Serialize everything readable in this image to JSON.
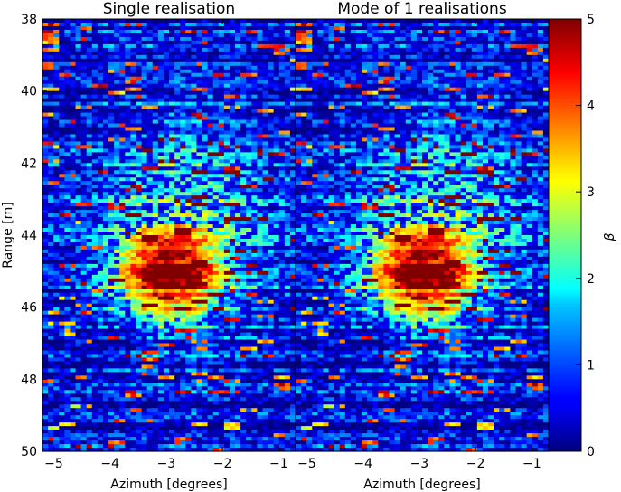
{
  "chart_data": [
    {
      "type": "heatmap",
      "title": "Single realisation",
      "xlabel": "Azimuth [degrees]",
      "ylabel": "Range [m]",
      "xlim": [
        -5.2,
        -0.7
      ],
      "ylim": [
        50,
        38
      ],
      "x_ticks": [
        -5,
        -4,
        -3,
        -2,
        -1
      ],
      "y_ticks": [
        38,
        40,
        42,
        44,
        46,
        48,
        50
      ],
      "x_tick_labels": [
        "−5",
        "−4",
        "−3",
        "−2",
        "−1"
      ],
      "y_tick_labels": [
        "38",
        "40",
        "42",
        "44",
        "46",
        "48",
        "50"
      ],
      "hotspot": {
        "azimuth": -2.9,
        "range": 45.0,
        "peak_beta": 5
      }
    },
    {
      "type": "heatmap",
      "title": "Mode of 1 realisations",
      "xlabel": "Azimuth [degrees]",
      "ylabel": "",
      "xlim": [
        -5.2,
        -0.7
      ],
      "ylim": [
        50,
        38
      ],
      "x_ticks": [
        -5,
        -4,
        -3,
        -2,
        -1
      ],
      "y_ticks": [],
      "x_tick_labels": [
        "−5",
        "−4",
        "−3",
        "−2",
        "−1"
      ],
      "y_tick_labels": [],
      "hotspot": {
        "azimuth": -2.9,
        "range": 45.0,
        "peak_beta": 5
      }
    }
  ],
  "colorbar": {
    "label": "β",
    "range": [
      0,
      5
    ],
    "ticks": [
      0,
      1,
      2,
      3,
      4,
      5
    ],
    "tick_labels": [
      "0",
      "1",
      "2",
      "3",
      "4",
      "5"
    ],
    "colormap": "jet"
  }
}
